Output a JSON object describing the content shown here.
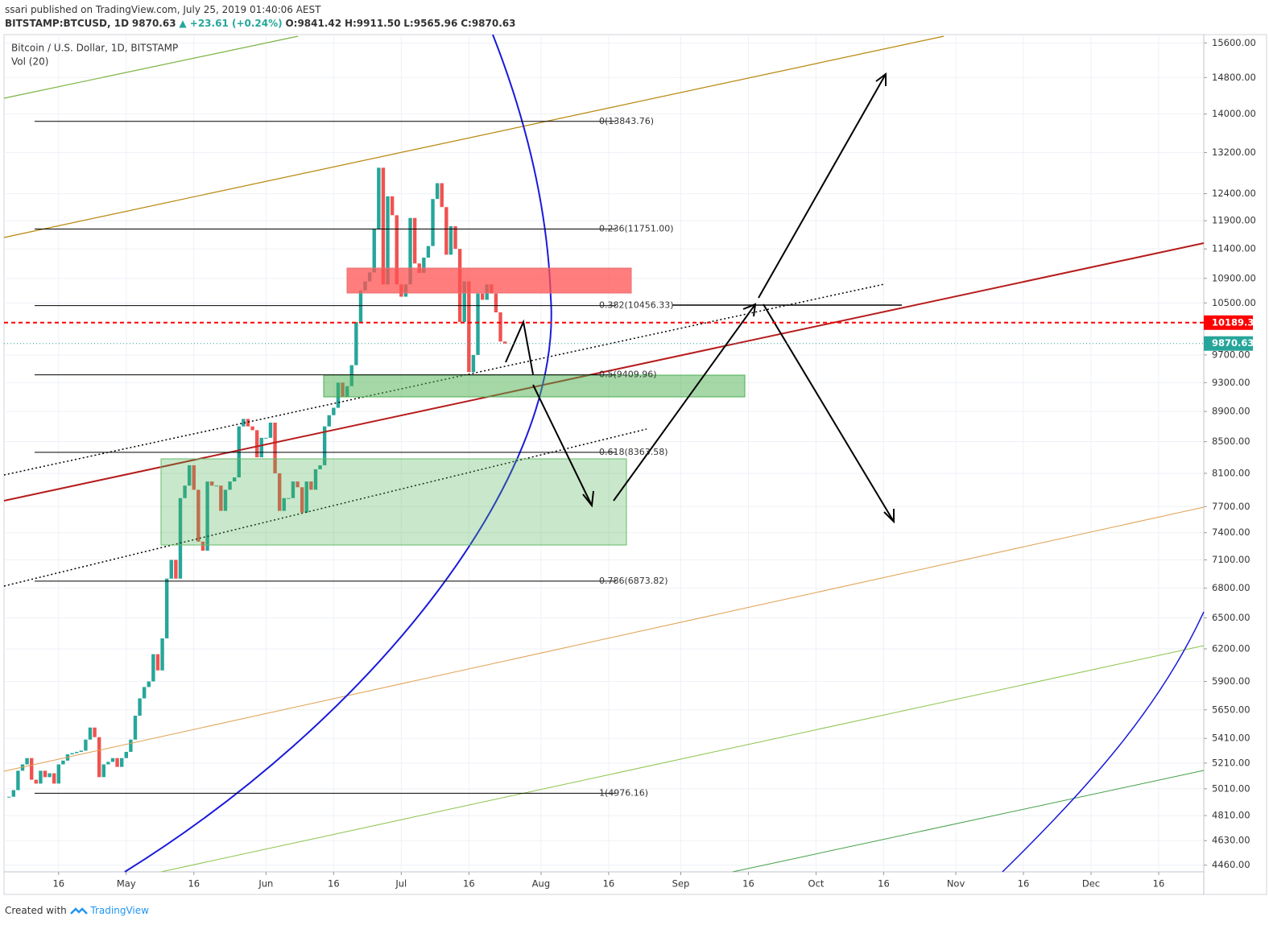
{
  "header": {
    "publisher": "ssari published on TradingView.com, July 25, 2019 01:40:06 AEST",
    "symbol": "BITSTAMP:BTCUSD, 1D",
    "last": "9870.63",
    "change": "▲ +23.61 (+0.24%)",
    "ohlc": [
      {
        "label": "O:",
        "value": "9841.42"
      },
      {
        "label": "H:",
        "value": "9911.50"
      },
      {
        "label": "L:",
        "value": "9565.96"
      },
      {
        "label": "C:",
        "value": "9870.63"
      }
    ],
    "legend": "Bitcoin / U.S. Dollar, 1D, BITSTAMP",
    "volume_label": "Vol (20)"
  },
  "footer": {
    "created": "Created with",
    "brand": "TradingView"
  },
  "chart_data": {
    "type": "candlestick",
    "up_color": "#26a69a",
    "down_color": "#ef5350",
    "log_scale": true,
    "grid": true,
    "x": [
      "2019-04-05",
      "2019-04-06",
      "2019-04-07",
      "2019-04-08",
      "2019-04-09",
      "2019-04-10",
      "2019-04-11",
      "2019-04-12",
      "2019-04-13",
      "2019-04-14",
      "2019-04-15",
      "2019-04-16",
      "2019-04-17",
      "2019-04-18",
      "2019-04-19",
      "2019-04-20",
      "2019-04-21",
      "2019-04-22",
      "2019-04-23",
      "2019-04-24",
      "2019-04-25",
      "2019-04-26",
      "2019-04-27",
      "2019-04-28",
      "2019-04-29",
      "2019-04-30",
      "2019-05-01",
      "2019-05-02",
      "2019-05-03",
      "2019-05-04",
      "2019-05-05",
      "2019-05-06",
      "2019-05-07",
      "2019-05-08",
      "2019-05-09",
      "2019-05-10",
      "2019-05-11",
      "2019-05-12",
      "2019-05-13",
      "2019-05-14",
      "2019-05-15",
      "2019-05-16",
      "2019-05-17",
      "2019-05-18",
      "2019-05-19",
      "2019-05-20",
      "2019-05-21",
      "2019-05-22",
      "2019-05-23",
      "2019-05-24",
      "2019-05-25",
      "2019-05-26",
      "2019-05-27",
      "2019-05-28",
      "2019-05-29",
      "2019-05-30",
      "2019-05-31",
      "2019-06-01",
      "2019-06-02",
      "2019-06-03",
      "2019-06-04",
      "2019-06-05",
      "2019-06-06",
      "2019-06-07",
      "2019-06-08",
      "2019-06-09",
      "2019-06-10",
      "2019-06-11",
      "2019-06-12",
      "2019-06-13",
      "2019-06-14",
      "2019-06-15",
      "2019-06-16",
      "2019-06-17",
      "2019-06-18",
      "2019-06-19",
      "2019-06-20",
      "2019-06-21",
      "2019-06-22",
      "2019-06-23",
      "2019-06-24",
      "2019-06-25",
      "2019-06-26",
      "2019-06-27",
      "2019-06-28",
      "2019-06-29",
      "2019-06-30",
      "2019-07-01",
      "2019-07-02",
      "2019-07-03",
      "2019-07-04",
      "2019-07-05",
      "2019-07-06",
      "2019-07-07",
      "2019-07-08",
      "2019-07-09",
      "2019-07-10",
      "2019-07-11",
      "2019-07-12",
      "2019-07-13",
      "2019-07-14",
      "2019-07-15",
      "2019-07-16",
      "2019-07-17",
      "2019-07-18",
      "2019-07-19",
      "2019-07-20",
      "2019-07-21",
      "2019-07-22",
      "2019-07-23",
      "2019-07-24"
    ],
    "values": [
      4950,
      5000,
      5150,
      5200,
      5250,
      5080,
      5050,
      5150,
      5100,
      5130,
      5050,
      5200,
      5230,
      5280,
      5290,
      5300,
      5310,
      5400,
      5500,
      5420,
      5100,
      5200,
      5220,
      5250,
      5180,
      5250,
      5300,
      5400,
      5600,
      5750,
      5850,
      5900,
      6150,
      6000,
      6300,
      6900,
      7100,
      6900,
      7800,
      7950,
      8200,
      7900,
      7300,
      7200,
      8000,
      7950,
      7950,
      7650,
      7900,
      8000,
      8050,
      8700,
      8800,
      8700,
      8650,
      8300,
      8550,
      8550,
      8750,
      8100,
      7650,
      7800,
      7800,
      8000,
      7930,
      7630,
      8000,
      7900,
      8150,
      8200,
      8700,
      8850,
      8950,
      9300,
      9100,
      9250,
      9550,
      10200,
      10700,
      10850,
      11000,
      11750,
      12900,
      10800,
      12350,
      12000,
      10800,
      10600,
      10800,
      11950,
      11150,
      10990,
      11250,
      11450,
      12300,
      12600,
      12150,
      11300,
      11800,
      11400,
      10200,
      10850,
      9450,
      9700,
      10650,
      10550,
      10800,
      10650,
      10350,
      9900,
      9870
    ],
    "xlim": [
      "2019-04-03",
      "2019-12-26"
    ],
    "xticks": [
      {
        "value": "2019-04-16",
        "label": "16"
      },
      {
        "value": "2019-05-01",
        "label": "May"
      },
      {
        "value": "2019-05-16",
        "label": "16"
      },
      {
        "value": "2019-06-01",
        "label": "Jun"
      },
      {
        "value": "2019-06-16",
        "label": "16"
      },
      {
        "value": "2019-07-01",
        "label": "Jul"
      },
      {
        "value": "2019-07-16",
        "label": "16"
      },
      {
        "value": "2019-08-01",
        "label": "Aug"
      },
      {
        "value": "2019-08-16",
        "label": "16"
      },
      {
        "value": "2019-09-01",
        "label": "Sep"
      },
      {
        "value": "2019-09-16",
        "label": "16"
      },
      {
        "value": "2019-10-01",
        "label": "Oct"
      },
      {
        "value": "2019-10-16",
        "label": "16"
      },
      {
        "value": "2019-11-01",
        "label": "Nov"
      },
      {
        "value": "2019-11-16",
        "label": "16"
      },
      {
        "value": "2019-12-01",
        "label": "Dec"
      },
      {
        "value": "2019-12-16",
        "label": "16"
      }
    ],
    "ylim": [
      4415,
      15760
    ],
    "yticks": [
      {
        "value": 15600,
        "label": "15600.00"
      },
      {
        "value": 14800,
        "label": "14800.00"
      },
      {
        "value": 14000,
        "label": "14000.00"
      },
      {
        "value": 13200,
        "label": "13200.00"
      },
      {
        "value": 12400,
        "label": "12400.00"
      },
      {
        "value": 11900,
        "label": "11900.00"
      },
      {
        "value": 11400,
        "label": "11400.00"
      },
      {
        "value": 10900,
        "label": "10900.00"
      },
      {
        "value": 10500,
        "label": "10500.00"
      },
      {
        "value": 9700,
        "label": "9700.00"
      },
      {
        "value": 9300,
        "label": "9300.00"
      },
      {
        "value": 8900,
        "label": "8900.00"
      },
      {
        "value": 8500,
        "label": "8500.00"
      },
      {
        "value": 8100,
        "label": "8100.00"
      },
      {
        "value": 7700,
        "label": "7700.00"
      },
      {
        "value": 7400,
        "label": "7400.00"
      },
      {
        "value": 7100,
        "label": "7100.00"
      },
      {
        "value": 6800,
        "label": "6800.00"
      },
      {
        "value": 6500,
        "label": "6500.00"
      },
      {
        "value": 6200,
        "label": "6200.00"
      },
      {
        "value": 5900,
        "label": "5900.00"
      },
      {
        "value": 5650,
        "label": "5650.00"
      },
      {
        "value": 5410,
        "label": "5410.00"
      },
      {
        "value": 5210,
        "label": "5210.00"
      },
      {
        "value": 5010,
        "label": "5010.00"
      },
      {
        "value": 4810,
        "label": "4810.00"
      },
      {
        "value": 4630,
        "label": "4630.00"
      },
      {
        "value": 4460,
        "label": "4460.00"
      }
    ],
    "fib_levels": [
      {
        "value": 13843.76,
        "label": "0(13843.76)"
      },
      {
        "value": 11751.0,
        "label": "0.236(11751.00)"
      },
      {
        "value": 10456.33,
        "label": "0.382(10456.33)"
      },
      {
        "value": 9409.96,
        "label": "0.5(9409.96)"
      },
      {
        "value": 8363.58,
        "label": "0.618(8363.58)"
      },
      {
        "value": 6873.82,
        "label": "0.786(6873.82)"
      },
      {
        "value": 4976.16,
        "label": "1(4976.16)"
      }
    ],
    "price_lines": [
      {
        "value": 10189.33,
        "color": "#ff0000"
      },
      {
        "value": 9870.63,
        "color": "#26a69a"
      }
    ]
  }
}
